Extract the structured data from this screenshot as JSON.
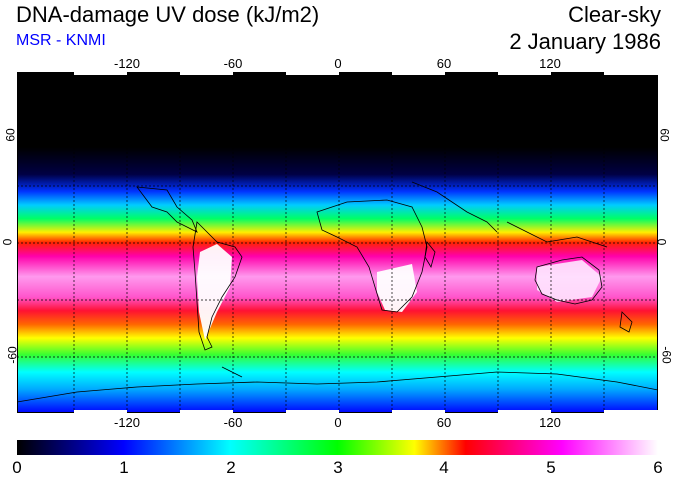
{
  "header": {
    "title": "DNA-damage UV dose (kJ/m2)",
    "organization": "MSR - KNMI",
    "condition": "Clear-sky",
    "date": "2 January 1986"
  },
  "axes": {
    "longitude_ticks": [
      "-120",
      "-60",
      "0",
      "60",
      "120"
    ],
    "longitude_values": [
      -120,
      -60,
      0,
      60,
      120
    ],
    "latitude_ticks": [
      "60",
      "0",
      "-60"
    ],
    "latitude_values": [
      60,
      0,
      -60
    ],
    "lon_range": [
      -180,
      180
    ],
    "lat_range": [
      -90,
      90
    ]
  },
  "colorbar": {
    "labels": [
      "0",
      "1",
      "2",
      "3",
      "4",
      "5",
      "6"
    ],
    "values": [
      0,
      1,
      2,
      3,
      4,
      5,
      6
    ],
    "stops": [
      "#000000",
      "#0000ff",
      "#00ffff",
      "#00ff00",
      "#ffff00",
      "#ff0000",
      "#ff00ff",
      "#ffffff"
    ]
  },
  "colors": {
    "polar_night": "#000000",
    "frame": "#000000",
    "coastline": "#000000",
    "org_label": "#0000ff"
  }
}
